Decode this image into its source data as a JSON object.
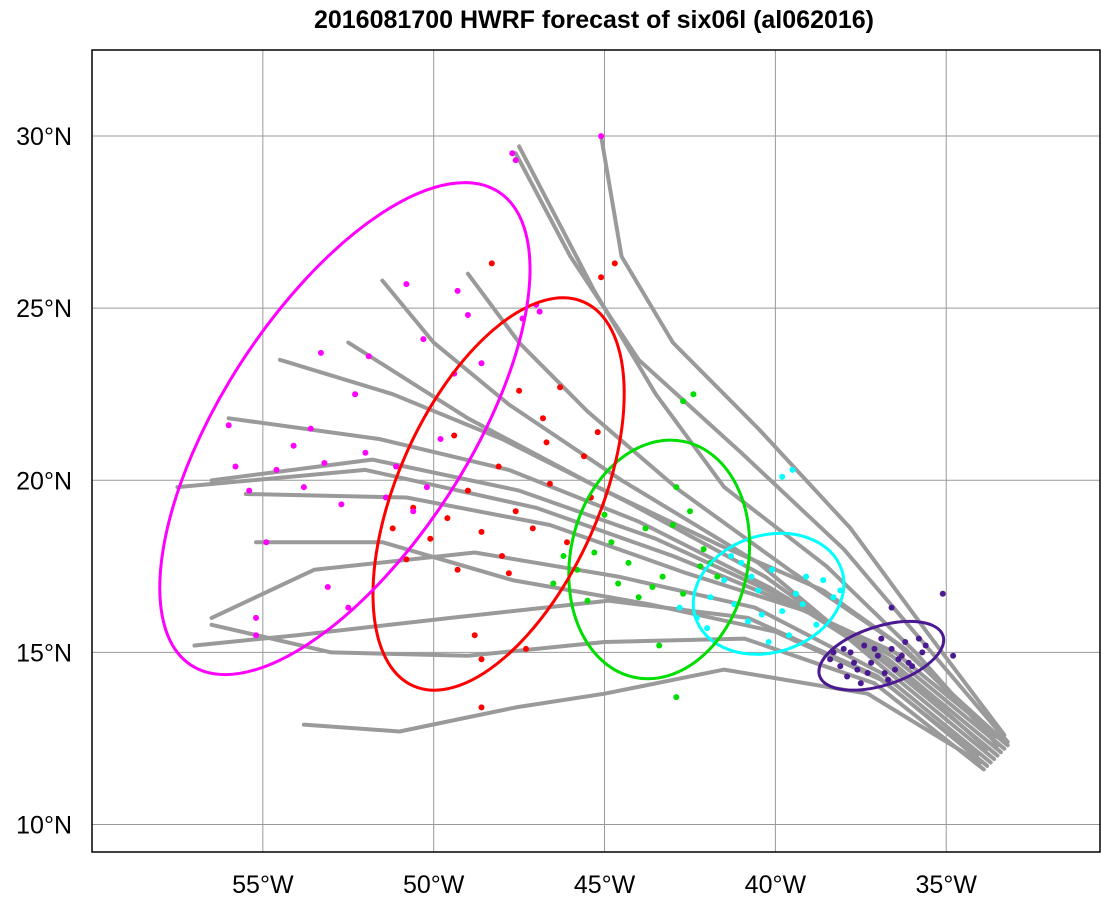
{
  "title": "2016081700 HWRF forecast of six06l (al062016)",
  "chart_data": {
    "type": "track-ensemble-map",
    "title": "2016081700 HWRF forecast of six06l (al062016)",
    "x_ticks": [
      {
        "value": -55,
        "label": "55°W"
      },
      {
        "value": -50,
        "label": "50°W"
      },
      {
        "value": -45,
        "label": "45°W"
      },
      {
        "value": -40,
        "label": "40°W"
      },
      {
        "value": -35,
        "label": "35°W"
      }
    ],
    "y_ticks": [
      {
        "value": 10,
        "label": "10°N"
      },
      {
        "value": 15,
        "label": "15°N"
      },
      {
        "value": 20,
        "label": "20°N"
      },
      {
        "value": 25,
        "label": "25°N"
      },
      {
        "value": 30,
        "label": "30°N"
      }
    ],
    "xlim": [
      -60,
      -30.5
    ],
    "ylim": [
      9.2,
      32.5
    ],
    "grid": true,
    "colors": {
      "track": "#9a9a9a",
      "grid": "#999999",
      "t1": "#4b1a93",
      "t2": "#00ffff",
      "t3": "#00dd00",
      "t4": "#ff0000",
      "t5": "#ff00ff"
    },
    "tracks": [
      [
        [
          -33.2,
          12.3
        ],
        [
          -36.5,
          15.0
        ],
        [
          -39.8,
          16.5
        ],
        [
          -43.0,
          17.8
        ],
        [
          -47.0,
          19.2
        ],
        [
          -52.0,
          20.3
        ],
        [
          -57.5,
          19.8
        ]
      ],
      [
        [
          -33.3,
          12.2
        ],
        [
          -36.6,
          14.9
        ],
        [
          -40.0,
          16.7
        ],
        [
          -43.5,
          18.3
        ],
        [
          -47.5,
          19.7
        ],
        [
          -51.8,
          20.6
        ],
        [
          -56.5,
          20.0
        ]
      ],
      [
        [
          -33.4,
          12.1
        ],
        [
          -36.7,
          14.8
        ],
        [
          -40.2,
          16.9
        ],
        [
          -44.0,
          18.8
        ],
        [
          -47.8,
          20.3
        ],
        [
          -51.6,
          21.2
        ],
        [
          -56.0,
          21.8
        ]
      ],
      [
        [
          -33.5,
          12.0
        ],
        [
          -36.8,
          14.7
        ],
        [
          -40.3,
          17.2
        ],
        [
          -44.2,
          19.3
        ],
        [
          -48.0,
          21.2
        ],
        [
          -51.2,
          22.5
        ],
        [
          -54.5,
          23.5
        ]
      ],
      [
        [
          -33.6,
          11.9
        ],
        [
          -36.9,
          14.6
        ],
        [
          -40.5,
          17.6
        ],
        [
          -44.5,
          20.0
        ],
        [
          -47.8,
          22.2
        ],
        [
          -50.0,
          24.0
        ],
        [
          -51.5,
          25.8
        ]
      ],
      [
        [
          -33.4,
          12.5
        ],
        [
          -36.5,
          15.3
        ],
        [
          -39.6,
          17.4
        ],
        [
          -42.8,
          19.7
        ],
        [
          -45.5,
          22.0
        ],
        [
          -47.5,
          24.0
        ],
        [
          -49.0,
          26.0
        ]
      ],
      [
        [
          -33.7,
          11.8
        ],
        [
          -36.9,
          14.4
        ],
        [
          -40.6,
          16.3
        ],
        [
          -44.6,
          17.2
        ],
        [
          -48.8,
          17.9
        ],
        [
          -53.5,
          17.4
        ],
        [
          -56.5,
          16.0
        ]
      ],
      [
        [
          -33.8,
          11.7
        ],
        [
          -37.0,
          14.3
        ],
        [
          -40.8,
          16.0
        ],
        [
          -44.9,
          16.5
        ],
        [
          -49.5,
          16.0
        ],
        [
          -54.0,
          15.5
        ],
        [
          -57.0,
          15.2
        ]
      ],
      [
        [
          -33.9,
          11.6
        ],
        [
          -37.1,
          14.1
        ],
        [
          -40.9,
          15.4
        ],
        [
          -45.0,
          15.3
        ],
        [
          -49.0,
          14.9
        ],
        [
          -53.0,
          15.0
        ],
        [
          -56.5,
          15.8
        ]
      ],
      [
        [
          -34.0,
          11.8
        ],
        [
          -37.3,
          13.8
        ],
        [
          -41.5,
          14.5
        ],
        [
          -45.0,
          13.8
        ],
        [
          -47.6,
          13.4
        ],
        [
          -51.0,
          12.7
        ],
        [
          -53.8,
          12.9
        ]
      ],
      [
        [
          -33.2,
          12.4
        ],
        [
          -35.6,
          15.2
        ],
        [
          -38.0,
          18.0
        ],
        [
          -41.0,
          20.8
        ],
        [
          -44.0,
          23.5
        ],
        [
          -46.0,
          26.5
        ],
        [
          -47.6,
          29.5
        ]
      ],
      [
        [
          -33.3,
          12.6
        ],
        [
          -35.5,
          15.5
        ],
        [
          -37.8,
          18.6
        ],
        [
          -40.5,
          21.5
        ],
        [
          -43.0,
          24.0
        ],
        [
          -44.5,
          26.5
        ],
        [
          -45.1,
          30.0
        ]
      ],
      [
        [
          -33.5,
          12.3
        ],
        [
          -35.9,
          15.0
        ],
        [
          -38.5,
          17.5
        ],
        [
          -41.5,
          19.8
        ],
        [
          -43.5,
          22.5
        ],
        [
          -45.3,
          25.5
        ],
        [
          -47.5,
          29.7
        ]
      ],
      [
        [
          -33.6,
          12.5
        ],
        [
          -36.2,
          15.1
        ],
        [
          -38.6,
          16.8
        ],
        [
          -41.6,
          18.1
        ],
        [
          -45.2,
          19.8
        ],
        [
          -49.0,
          21.8
        ],
        [
          -52.5,
          24.0
        ]
      ],
      [
        [
          -33.8,
          12.2
        ],
        [
          -36.4,
          14.5
        ],
        [
          -39.1,
          16.2
        ],
        [
          -42.6,
          17.3
        ],
        [
          -46.6,
          18.7
        ],
        [
          -50.8,
          19.5
        ],
        [
          -55.5,
          19.6
        ]
      ],
      [
        [
          -34.1,
          12.0
        ],
        [
          -36.9,
          14.2
        ],
        [
          -40.0,
          15.6
        ],
        [
          -43.7,
          16.4
        ],
        [
          -47.7,
          17.1
        ],
        [
          -51.5,
          18.2
        ],
        [
          -55.2,
          18.2
        ]
      ]
    ],
    "points": {
      "t1": [
        [
          -38.4,
          14.8
        ],
        [
          -38.1,
          14.6
        ],
        [
          -37.8,
          15.0
        ],
        [
          -37.6,
          14.5
        ],
        [
          -37.4,
          15.2
        ],
        [
          -37.2,
          14.7
        ],
        [
          -37.0,
          14.9
        ],
        [
          -36.8,
          14.4
        ],
        [
          -36.6,
          15.1
        ],
        [
          -36.4,
          14.8
        ],
        [
          -36.2,
          15.3
        ],
        [
          -36.0,
          14.6
        ],
        [
          -35.8,
          15.4
        ],
        [
          -37.9,
          14.3
        ],
        [
          -37.5,
          14.1
        ],
        [
          -36.9,
          15.4
        ],
        [
          -37.3,
          14.4
        ],
        [
          -36.5,
          14.5
        ],
        [
          -38.0,
          15.1
        ],
        [
          -36.7,
          14.2
        ],
        [
          -34.8,
          14.9
        ],
        [
          -35.6,
          15.2
        ],
        [
          -36.6,
          16.3
        ],
        [
          -35.1,
          16.7
        ],
        [
          -35.7,
          15.0
        ],
        [
          -37.1,
          15.1
        ],
        [
          -36.3,
          14.9
        ],
        [
          -38.3,
          15.0
        ],
        [
          -37.7,
          14.7
        ],
        [
          -36.1,
          14.7
        ]
      ],
      "t2": [
        [
          -42.8,
          16.3
        ],
        [
          -42.3,
          16.0
        ],
        [
          -41.9,
          16.6
        ],
        [
          -41.5,
          17.1
        ],
        [
          -41.2,
          16.4
        ],
        [
          -40.8,
          15.9
        ],
        [
          -40.5,
          16.8
        ],
        [
          -40.1,
          17.4
        ],
        [
          -39.8,
          16.2
        ],
        [
          -39.4,
          16.7
        ],
        [
          -39.1,
          17.2
        ],
        [
          -38.8,
          15.8
        ],
        [
          -40.2,
          15.3
        ],
        [
          -39.6,
          15.5
        ],
        [
          -41.0,
          17.6
        ],
        [
          -39.2,
          16.4
        ],
        [
          -38.6,
          17.1
        ],
        [
          -38.3,
          16.6
        ],
        [
          -42.0,
          15.7
        ],
        [
          -40.7,
          17.2
        ],
        [
          -39.5,
          20.3
        ],
        [
          -39.8,
          20.1
        ],
        [
          -41.3,
          17.8
        ],
        [
          -38.1,
          16.8
        ],
        [
          -40.4,
          16.1
        ]
      ],
      "t3": [
        [
          -46.5,
          17.0
        ],
        [
          -45.8,
          17.4
        ],
        [
          -45.3,
          17.9
        ],
        [
          -44.8,
          18.2
        ],
        [
          -44.3,
          17.6
        ],
        [
          -43.8,
          18.6
        ],
        [
          -43.3,
          17.2
        ],
        [
          -42.7,
          16.7
        ],
        [
          -42.2,
          17.5
        ],
        [
          -45.5,
          16.5
        ],
        [
          -44.6,
          17.0
        ],
        [
          -43.4,
          15.2
        ],
        [
          -43.0,
          18.7
        ],
        [
          -42.5,
          19.1
        ],
        [
          -45.0,
          19.0
        ],
        [
          -44.0,
          16.6
        ],
        [
          -43.6,
          16.9
        ],
        [
          -42.9,
          19.8
        ],
        [
          -42.1,
          18.0
        ],
        [
          -46.2,
          17.8
        ],
        [
          -42.7,
          22.3
        ],
        [
          -42.4,
          22.5
        ],
        [
          -42.9,
          13.7
        ],
        [
          -41.7,
          17.2
        ],
        [
          -41.9,
          17.6
        ]
      ],
      "t4": [
        [
          -51.2,
          18.6
        ],
        [
          -50.6,
          19.2
        ],
        [
          -50.1,
          18.3
        ],
        [
          -49.6,
          18.9
        ],
        [
          -49.0,
          19.7
        ],
        [
          -48.6,
          18.5
        ],
        [
          -48.1,
          20.4
        ],
        [
          -47.6,
          19.1
        ],
        [
          -47.1,
          18.6
        ],
        [
          -46.6,
          19.9
        ],
        [
          -46.1,
          18.2
        ],
        [
          -45.6,
          20.7
        ],
        [
          -45.2,
          21.4
        ],
        [
          -46.8,
          21.8
        ],
        [
          -47.5,
          22.6
        ],
        [
          -48.0,
          17.8
        ],
        [
          -49.3,
          17.4
        ],
        [
          -50.8,
          17.7
        ],
        [
          -46.3,
          22.7
        ],
        [
          -45.4,
          19.5
        ],
        [
          -47.3,
          15.1
        ],
        [
          -48.6,
          14.8
        ],
        [
          -48.8,
          15.5
        ],
        [
          -48.6,
          13.4
        ],
        [
          -48.3,
          26.3
        ],
        [
          -45.1,
          25.9
        ],
        [
          -44.7,
          26.3
        ],
        [
          -46.7,
          21.1
        ],
        [
          -49.4,
          21.3
        ],
        [
          -47.8,
          17.3
        ]
      ],
      "t5": [
        [
          -56.0,
          21.6
        ],
        [
          -55.4,
          19.7
        ],
        [
          -54.6,
          20.3
        ],
        [
          -53.8,
          19.8
        ],
        [
          -53.2,
          20.5
        ],
        [
          -52.7,
          19.3
        ],
        [
          -52.0,
          20.8
        ],
        [
          -51.4,
          19.5
        ],
        [
          -51.1,
          20.4
        ],
        [
          -50.6,
          19.1
        ],
        [
          -50.2,
          19.8
        ],
        [
          -49.8,
          21.2
        ],
        [
          -49.4,
          23.1
        ],
        [
          -50.3,
          24.1
        ],
        [
          -51.9,
          23.6
        ],
        [
          -52.3,
          22.5
        ],
        [
          -53.3,
          23.7
        ],
        [
          -50.8,
          25.7
        ],
        [
          -49.3,
          25.5
        ],
        [
          -49.0,
          24.8
        ],
        [
          -48.6,
          23.4
        ],
        [
          -47.4,
          24.7
        ],
        [
          -46.9,
          24.9
        ],
        [
          -47.0,
          25.1
        ],
        [
          -55.2,
          16.0
        ],
        [
          -55.2,
          15.5
        ],
        [
          -54.9,
          18.2
        ],
        [
          -53.1,
          16.9
        ],
        [
          -52.5,
          16.3
        ],
        [
          -47.6,
          29.3
        ],
        [
          -47.7,
          29.5
        ],
        [
          -45.1,
          30.0
        ],
        [
          -54.1,
          21.0
        ],
        [
          -55.8,
          20.4
        ],
        [
          -53.6,
          21.5
        ]
      ]
    },
    "ellipses": [
      {
        "key": "t1",
        "cx": -36.9,
        "cy": 14.9,
        "rx": 1.9,
        "ry": 0.85,
        "rot": -18
      },
      {
        "key": "t2",
        "cx": -40.2,
        "cy": 16.7,
        "rx": 2.25,
        "ry": 1.7,
        "rot": -18
      },
      {
        "key": "t3",
        "cx": -43.4,
        "cy": 17.7,
        "rx": 2.6,
        "ry": 3.5,
        "rot": 12
      },
      {
        "key": "t4",
        "cx": -48.1,
        "cy": 19.6,
        "rx": 2.95,
        "ry": 6.1,
        "rot": 24
      },
      {
        "key": "t5",
        "cx": -52.6,
        "cy": 21.5,
        "rx": 3.6,
        "ry": 8.2,
        "rot": 33
      }
    ]
  }
}
